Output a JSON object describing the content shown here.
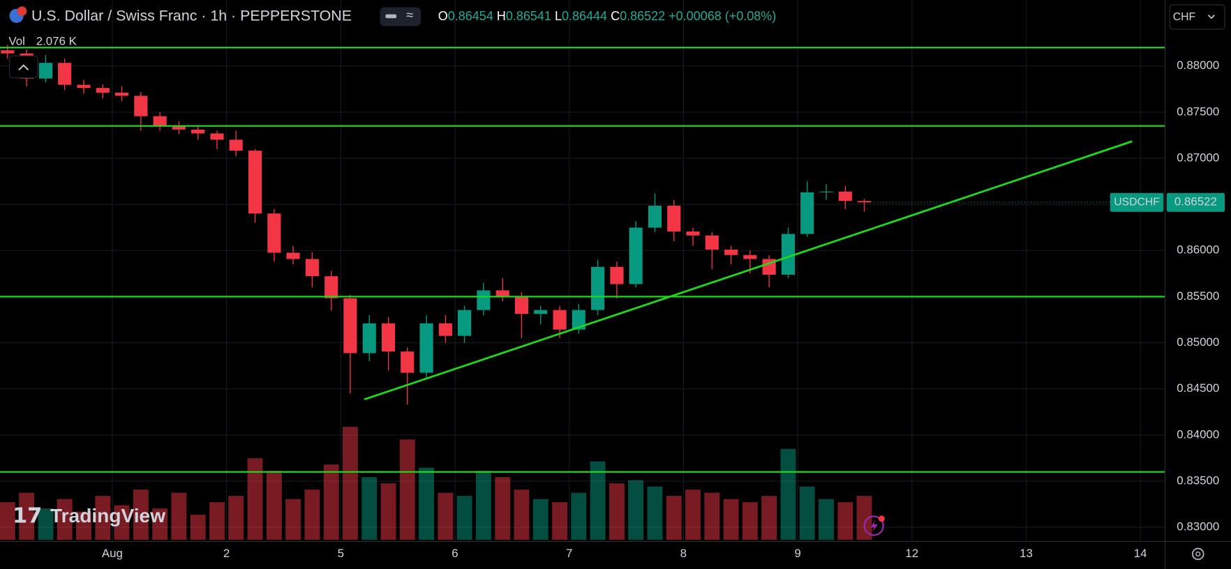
{
  "header": {
    "title": "U.S. Dollar / Swiss Franc · 1h · PEPPERSTONE",
    "ohlc_labels": [
      "O",
      "H",
      "L",
      "C"
    ],
    "ohlc_values": [
      0.86454,
      0.86541,
      0.86444,
      0.86522
    ],
    "change": "+0.00068 (+0.08%)",
    "vol_label": "Vol",
    "vol_value": "2.076 K",
    "currency": "CHF",
    "symbol": "USDCHF",
    "last_price": 0.86522,
    "logo": "TradingView"
  },
  "chart_data": {
    "type": "candlestick",
    "up_color": "#089981",
    "down_color": "#f23645",
    "level_color": "#1ed71e",
    "x": [
      0.083,
      0.25,
      0.417,
      0.583,
      0.75,
      0.917,
      1.083,
      1.25,
      1.417,
      1.583,
      1.75,
      1.917,
      2.083,
      2.25,
      2.417,
      2.583,
      2.75,
      2.917,
      3.083,
      3.25,
      3.417,
      3.583,
      3.75,
      3.917,
      4.083,
      4.25,
      4.417,
      4.583,
      4.75,
      4.917,
      5.083,
      5.25,
      5.417,
      5.583,
      5.75,
      5.917,
      6.083,
      6.25,
      6.417,
      6.583,
      6.75,
      6.917,
      7.083,
      7.25,
      7.417,
      7.583
    ],
    "ohlc": [
      [
        0.8817,
        0.8823,
        0.8808,
        0.88136
      ],
      [
        0.88136,
        0.8818,
        0.8778,
        0.87864
      ],
      [
        0.87864,
        0.8812,
        0.8782,
        0.88034
      ],
      [
        0.88034,
        0.8808,
        0.8774,
        0.87796
      ],
      [
        0.87796,
        0.8785,
        0.877,
        0.87762
      ],
      [
        0.87762,
        0.878,
        0.8765,
        0.87711
      ],
      [
        0.87711,
        0.8778,
        0.8762,
        0.87677
      ],
      [
        0.87677,
        0.8772,
        0.873,
        0.87456
      ],
      [
        0.87456,
        0.875,
        0.873,
        0.87354
      ],
      [
        0.87354,
        0.874,
        0.8726,
        0.87311
      ],
      [
        0.87311,
        0.8736,
        0.872,
        0.87269
      ],
      [
        0.87269,
        0.873,
        0.871,
        0.87201
      ],
      [
        0.87201,
        0.873,
        0.8702,
        0.87082
      ],
      [
        0.87082,
        0.871,
        0.863,
        0.86401
      ],
      [
        0.86401,
        0.8645,
        0.8588,
        0.85976
      ],
      [
        0.85976,
        0.8605,
        0.8585,
        0.85908
      ],
      [
        0.85908,
        0.8598,
        0.856,
        0.85721
      ],
      [
        0.85721,
        0.8578,
        0.8535,
        0.85483
      ],
      [
        0.85483,
        0.8552,
        0.8445,
        0.84888
      ],
      [
        0.84888,
        0.853,
        0.848,
        0.85211
      ],
      [
        0.85211,
        0.8528,
        0.847,
        0.84905
      ],
      [
        0.84905,
        0.8495,
        0.8433,
        0.84675
      ],
      [
        0.84675,
        0.853,
        0.846,
        0.85211
      ],
      [
        0.85211,
        0.853,
        0.85,
        0.85075
      ],
      [
        0.85075,
        0.854,
        0.85,
        0.85355
      ],
      [
        0.85355,
        0.8565,
        0.853,
        0.85568
      ],
      [
        0.85568,
        0.857,
        0.8545,
        0.855
      ],
      [
        0.855,
        0.8555,
        0.8505,
        0.85313
      ],
      [
        0.85313,
        0.854,
        0.852,
        0.85355
      ],
      [
        0.85355,
        0.854,
        0.8505,
        0.85143
      ],
      [
        0.85143,
        0.8542,
        0.851,
        0.85355
      ],
      [
        0.85355,
        0.859,
        0.853,
        0.85823
      ],
      [
        0.85823,
        0.8588,
        0.8548,
        0.85636
      ],
      [
        0.85636,
        0.8632,
        0.856,
        0.86248
      ],
      [
        0.86248,
        0.8662,
        0.862,
        0.86486
      ],
      [
        0.86486,
        0.8655,
        0.861,
        0.86206
      ],
      [
        0.86206,
        0.8625,
        0.8605,
        0.86163
      ],
      [
        0.86163,
        0.862,
        0.858,
        0.8601
      ],
      [
        0.8601,
        0.8605,
        0.8585,
        0.85951
      ],
      [
        0.85951,
        0.86,
        0.8575,
        0.85908
      ],
      [
        0.85908,
        0.8595,
        0.856,
        0.85738
      ],
      [
        0.85738,
        0.8625,
        0.857,
        0.8618
      ],
      [
        0.8618,
        0.8675,
        0.8615,
        0.86631
      ],
      [
        0.86631,
        0.8672,
        0.8655,
        0.86639
      ],
      [
        0.86639,
        0.867,
        0.8645,
        0.86537
      ],
      [
        0.86537,
        0.8656,
        0.8642,
        0.86522
      ]
    ],
    "volume": [
      1.2,
      1.5,
      1.0,
      1.3,
      0.9,
      1.4,
      1.1,
      1.6,
      1.0,
      1.5,
      0.8,
      1.2,
      1.4,
      2.6,
      2.2,
      1.3,
      1.6,
      2.4,
      3.6,
      2.0,
      1.8,
      3.2,
      2.3,
      1.5,
      1.4,
      2.2,
      2.0,
      1.6,
      1.3,
      1.2,
      1.5,
      2.5,
      1.8,
      1.9,
      1.7,
      1.4,
      1.6,
      1.5,
      1.3,
      1.2,
      1.4,
      2.9,
      1.7,
      1.3,
      1.2,
      1.4
    ],
    "vollim": [
      0,
      5
    ],
    "xlim": [
      0.017,
      10.216
    ],
    "xticks": [
      {
        "value": 1,
        "label": "Aug"
      },
      2,
      {
        "value": 3,
        "label": "5"
      },
      {
        "value": 4,
        "label": "6"
      },
      {
        "value": 5,
        "label": "7"
      },
      {
        "value": 6,
        "label": "8"
      },
      {
        "value": 7,
        "label": "9"
      },
      {
        "value": 8,
        "label": "12"
      },
      {
        "value": 9,
        "label": "13"
      },
      {
        "value": 10,
        "label": "14"
      }
    ],
    "ylim": [
      0.82847,
      0.88714
    ],
    "yticks": [
      {
        "value": 0.83,
        "label": "0.83000"
      },
      {
        "value": 0.835,
        "label": "0.83500"
      },
      {
        "value": 0.84,
        "label": "0.84000"
      },
      {
        "value": 0.845,
        "label": "0.84500"
      },
      {
        "value": 0.85,
        "label": "0.85000"
      },
      {
        "value": 0.855,
        "label": "0.85500"
      },
      {
        "value": 0.86,
        "label": "0.86000"
      },
      {
        "value": 0.865,
        "label": "0.86500"
      },
      {
        "value": 0.87,
        "label": "0.87000"
      },
      {
        "value": 0.875,
        "label": "0.87500"
      },
      {
        "value": 0.88,
        "label": "0.88000"
      }
    ],
    "hlines": [
      0.882,
      0.8735,
      0.855,
      0.836
    ],
    "trendline": {
      "x": [
        3.206,
        9.928
      ],
      "y": [
        0.84386,
        0.87184
      ]
    },
    "grid": true
  }
}
